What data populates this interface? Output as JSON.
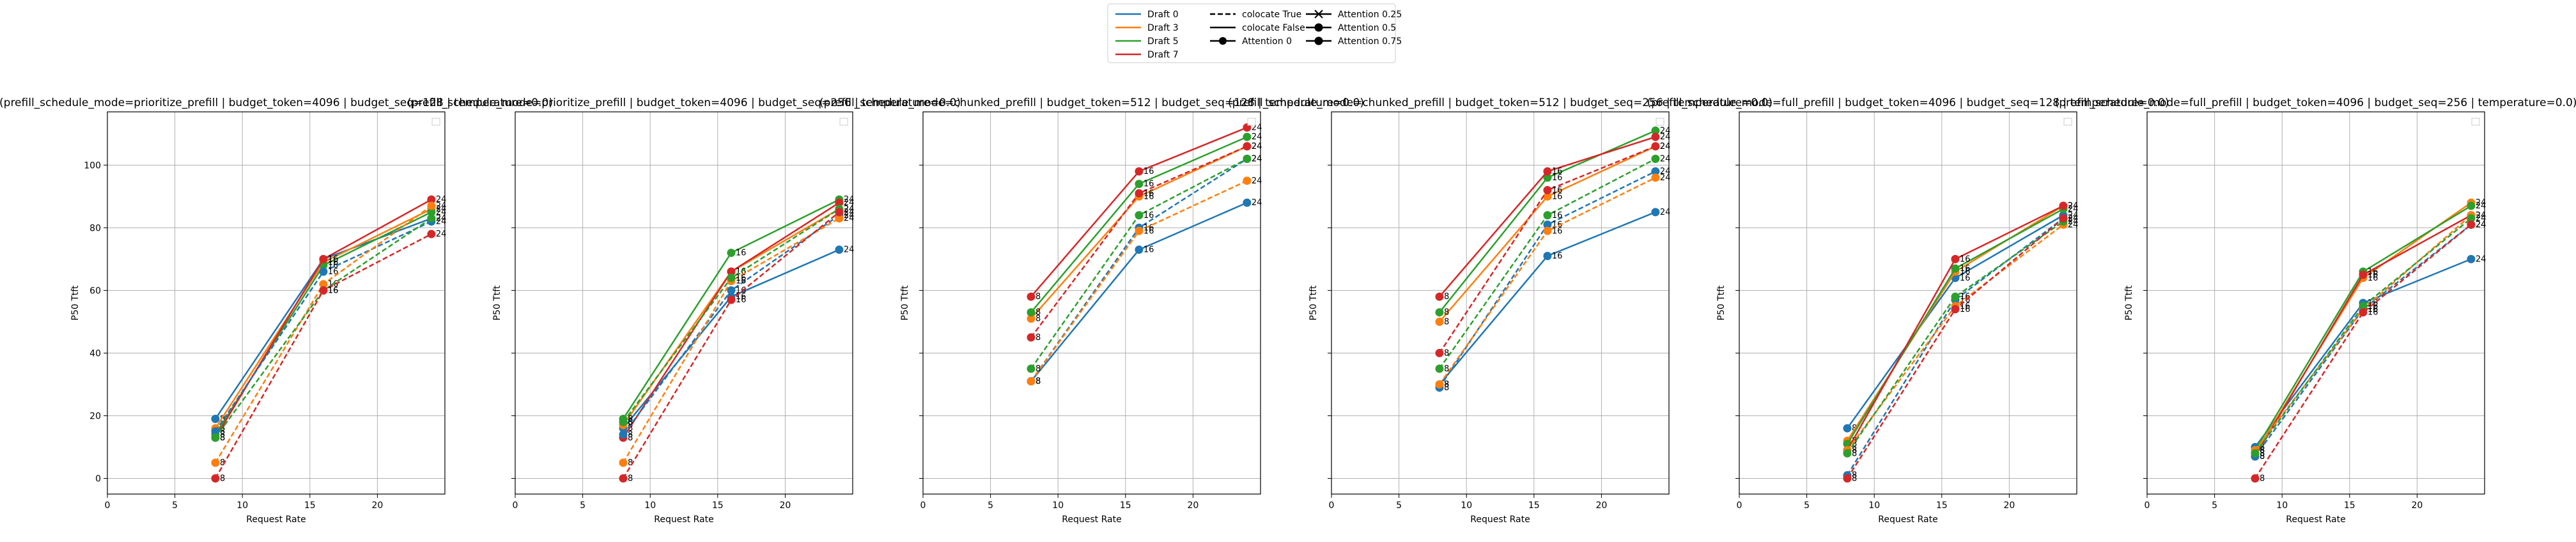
{
  "figure": {
    "legend": {
      "col1": [
        {
          "label": "Draft 0",
          "color": "#1f77b4"
        },
        {
          "label": "Draft 3",
          "color": "#ff7f0e"
        },
        {
          "label": "Draft 5",
          "color": "#2ca02c"
        },
        {
          "label": "Draft 7",
          "color": "#d62728"
        }
      ],
      "col2": [
        {
          "label": "colocate True",
          "style": "dashed"
        },
        {
          "label": "colocate False",
          "style": "solid"
        },
        {
          "label": "Attention 0",
          "marker": "circle"
        }
      ],
      "col3": [
        {
          "label": "Attention 0.25",
          "marker": "x"
        },
        {
          "label": "Attention 0.5",
          "marker": "circle"
        },
        {
          "label": "Attention 0.75",
          "marker": "circle"
        }
      ]
    }
  },
  "chart_data": [
    {
      "type": "line",
      "title": "(prefill_schedule_mode=prioritize_prefill | budget_token=4096 | budget_seq=128 | temperature=0.0)",
      "xlabel": "Request Rate",
      "ylabel": "P50 Ttft",
      "xlim": [
        0,
        25
      ],
      "ylim": [
        -5,
        117
      ],
      "xticks": [
        0,
        5,
        10,
        15,
        20
      ],
      "yticks": [
        0,
        20,
        40,
        60,
        80,
        100
      ],
      "grid": true,
      "show_yticklabels": true,
      "x": [
        8,
        16,
        24
      ],
      "point_labels": [
        "8",
        "16",
        "24"
      ],
      "series": [
        {
          "draft": "0",
          "color": "#1f77b4",
          "style": "solid",
          "values": [
            19,
            70,
            83
          ]
        },
        {
          "draft": "3",
          "color": "#ff7f0e",
          "style": "solid",
          "values": [
            16,
            69,
            86
          ]
        },
        {
          "draft": "5",
          "color": "#2ca02c",
          "style": "solid",
          "values": [
            14,
            68,
            85
          ]
        },
        {
          "draft": "7",
          "color": "#d62728",
          "style": "solid",
          "values": [
            13,
            70,
            89
          ]
        },
        {
          "draft": "0",
          "color": "#1f77b4",
          "style": "dashed",
          "values": [
            15,
            66,
            82
          ]
        },
        {
          "draft": "3",
          "color": "#ff7f0e",
          "style": "dashed",
          "values": [
            5,
            62,
            87
          ]
        },
        {
          "draft": "5",
          "color": "#2ca02c",
          "style": "dashed",
          "values": [
            13,
            60,
            83
          ]
        },
        {
          "draft": "7",
          "color": "#d62728",
          "style": "dashed",
          "values": [
            0,
            60,
            78
          ]
        }
      ]
    },
    {
      "type": "line",
      "title": "(prefill_schedule_mode=prioritize_prefill | budget_token=4096 | budget_seq=256 | temperature=0.0)",
      "xlabel": "Request Rate",
      "ylabel": "P50 Ttft",
      "xlim": [
        0,
        25
      ],
      "ylim": [
        -5,
        117
      ],
      "xticks": [
        0,
        5,
        10,
        15,
        20
      ],
      "yticks": [
        0,
        20,
        40,
        60,
        80,
        100
      ],
      "grid": true,
      "show_yticklabels": false,
      "x": [
        8,
        16,
        24
      ],
      "point_labels": [
        "8",
        "16",
        "24"
      ],
      "series": [
        {
          "draft": "0",
          "color": "#1f77b4",
          "style": "solid",
          "values": [
            16,
            58,
            73
          ]
        },
        {
          "draft": "3",
          "color": "#ff7f0e",
          "style": "solid",
          "values": [
            17,
            66,
            86
          ]
        },
        {
          "draft": "5",
          "color": "#2ca02c",
          "style": "solid",
          "values": [
            19,
            72,
            89
          ]
        },
        {
          "draft": "7",
          "color": "#d62728",
          "style": "solid",
          "values": [
            13,
            66,
            88
          ]
        },
        {
          "draft": "0",
          "color": "#1f77b4",
          "style": "dashed",
          "values": [
            14,
            60,
            84
          ]
        },
        {
          "draft": "3",
          "color": "#ff7f0e",
          "style": "dashed",
          "values": [
            5,
            63,
            83
          ]
        },
        {
          "draft": "5",
          "color": "#2ca02c",
          "style": "dashed",
          "values": [
            18,
            64,
            86
          ]
        },
        {
          "draft": "7",
          "color": "#d62728",
          "style": "dashed",
          "values": [
            0,
            57,
            85
          ]
        }
      ]
    },
    {
      "type": "line",
      "title": "(prefill_schedule_mode=chunked_prefill | budget_token=512 | budget_seq=128 | temperature=0.0)",
      "xlabel": "Request Rate",
      "ylabel": "P50 Ttft",
      "xlim": [
        0,
        25
      ],
      "ylim": [
        -5,
        117
      ],
      "xticks": [
        0,
        5,
        10,
        15,
        20
      ],
      "yticks": [
        0,
        20,
        40,
        60,
        80,
        100
      ],
      "grid": true,
      "show_yticklabels": false,
      "x": [
        8,
        16,
        24
      ],
      "point_labels": [
        "8",
        "16",
        "24"
      ],
      "series": [
        {
          "draft": "0",
          "color": "#1f77b4",
          "style": "solid",
          "values": [
            31,
            73,
            88
          ]
        },
        {
          "draft": "3",
          "color": "#ff7f0e",
          "style": "solid",
          "values": [
            51,
            90,
            106
          ]
        },
        {
          "draft": "5",
          "color": "#2ca02c",
          "style": "solid",
          "values": [
            53,
            94,
            109
          ]
        },
        {
          "draft": "7",
          "color": "#d62728",
          "style": "solid",
          "values": [
            58,
            98,
            112
          ]
        },
        {
          "draft": "0",
          "color": "#1f77b4",
          "style": "dashed",
          "values": [
            31,
            80,
            102
          ]
        },
        {
          "draft": "3",
          "color": "#ff7f0e",
          "style": "dashed",
          "values": [
            31,
            79,
            95
          ]
        },
        {
          "draft": "5",
          "color": "#2ca02c",
          "style": "dashed",
          "values": [
            35,
            84,
            102
          ]
        },
        {
          "draft": "7",
          "color": "#d62728",
          "style": "dashed",
          "values": [
            45,
            91,
            106
          ]
        }
      ]
    },
    {
      "type": "line",
      "title": "(prefill_schedule_mode=chunked_prefill | budget_token=512 | budget_seq=256 | temperature=0.0)",
      "xlabel": "Request Rate",
      "ylabel": "P50 Ttft",
      "xlim": [
        0,
        25
      ],
      "ylim": [
        -5,
        117
      ],
      "xticks": [
        0,
        5,
        10,
        15,
        20
      ],
      "yticks": [
        0,
        20,
        40,
        60,
        80,
        100
      ],
      "grid": true,
      "show_yticklabels": false,
      "x": [
        8,
        16,
        24
      ],
      "point_labels": [
        "8",
        "16",
        "24"
      ],
      "series": [
        {
          "draft": "0",
          "color": "#1f77b4",
          "style": "solid",
          "values": [
            30,
            71,
            85
          ]
        },
        {
          "draft": "3",
          "color": "#ff7f0e",
          "style": "solid",
          "values": [
            50,
            90,
            106
          ]
        },
        {
          "draft": "5",
          "color": "#2ca02c",
          "style": "solid",
          "values": [
            53,
            96,
            111
          ]
        },
        {
          "draft": "7",
          "color": "#d62728",
          "style": "solid",
          "values": [
            58,
            98,
            109
          ]
        },
        {
          "draft": "0",
          "color": "#1f77b4",
          "style": "dashed",
          "values": [
            29,
            81,
            98
          ]
        },
        {
          "draft": "3",
          "color": "#ff7f0e",
          "style": "dashed",
          "values": [
            30,
            79,
            96
          ]
        },
        {
          "draft": "5",
          "color": "#2ca02c",
          "style": "dashed",
          "values": [
            35,
            84,
            102
          ]
        },
        {
          "draft": "7",
          "color": "#d62728",
          "style": "dashed",
          "values": [
            40,
            92,
            106
          ]
        }
      ]
    },
    {
      "type": "line",
      "title": "(prefill_schedule_mode=full_prefill | budget_token=4096 | budget_seq=128 | temperature=0.0)",
      "xlabel": "Request Rate",
      "ylabel": "P50 Ttft",
      "xlim": [
        0,
        25
      ],
      "ylim": [
        -5,
        117
      ],
      "xticks": [
        0,
        5,
        10,
        15,
        20
      ],
      "yticks": [
        0,
        20,
        40,
        60,
        80,
        100
      ],
      "grid": true,
      "show_yticklabels": false,
      "x": [
        8,
        16,
        24
      ],
      "point_labels": [
        "8",
        "16",
        "24"
      ],
      "series": [
        {
          "draft": "0",
          "color": "#1f77b4",
          "style": "solid",
          "values": [
            16,
            64,
            84
          ]
        },
        {
          "draft": "3",
          "color": "#ff7f0e",
          "style": "solid",
          "values": [
            12,
            66,
            87
          ]
        },
        {
          "draft": "5",
          "color": "#2ca02c",
          "style": "solid",
          "values": [
            11,
            67,
            86
          ]
        },
        {
          "draft": "7",
          "color": "#d62728",
          "style": "solid",
          "values": [
            9,
            70,
            87
          ]
        },
        {
          "draft": "0",
          "color": "#1f77b4",
          "style": "dashed",
          "values": [
            1,
            57,
            83
          ]
        },
        {
          "draft": "3",
          "color": "#ff7f0e",
          "style": "dashed",
          "values": [
            9,
            55,
            81
          ]
        },
        {
          "draft": "5",
          "color": "#2ca02c",
          "style": "dashed",
          "values": [
            8,
            58,
            82
          ]
        },
        {
          "draft": "7",
          "color": "#d62728",
          "style": "dashed",
          "values": [
            0,
            54,
            83
          ]
        }
      ]
    },
    {
      "type": "line",
      "title": "(prefill_schedule_mode=full_prefill | budget_token=4096 | budget_seq=256 | temperature=0.0)",
      "xlabel": "Request Rate",
      "ylabel": "P50 Ttft",
      "xlim": [
        0,
        25
      ],
      "ylim": [
        -5,
        117
      ],
      "xticks": [
        0,
        5,
        10,
        15,
        20
      ],
      "yticks": [
        0,
        20,
        40,
        60,
        80,
        100
      ],
      "grid": true,
      "show_yticklabels": false,
      "x": [
        8,
        16,
        24
      ],
      "point_labels": [
        "8",
        "16",
        "24"
      ],
      "series": [
        {
          "draft": "0",
          "color": "#1f77b4",
          "style": "solid",
          "values": [
            10,
            56,
            70
          ]
        },
        {
          "draft": "3",
          "color": "#ff7f0e",
          "style": "solid",
          "values": [
            8,
            64,
            88
          ]
        },
        {
          "draft": "5",
          "color": "#2ca02c",
          "style": "solid",
          "values": [
            9,
            66,
            87
          ]
        },
        {
          "draft": "7",
          "color": "#d62728",
          "style": "solid",
          "values": [
            7,
            65,
            84
          ]
        },
        {
          "draft": "0",
          "color": "#1f77b4",
          "style": "dashed",
          "values": [
            7,
            54,
            81
          ]
        },
        {
          "draft": "3",
          "color": "#ff7f0e",
          "style": "dashed",
          "values": [
            9,
            54,
            84
          ]
        },
        {
          "draft": "5",
          "color": "#2ca02c",
          "style": "dashed",
          "values": [
            8,
            55,
            83
          ]
        },
        {
          "draft": "7",
          "color": "#d62728",
          "style": "dashed",
          "values": [
            0,
            53,
            81
          ]
        }
      ]
    }
  ]
}
